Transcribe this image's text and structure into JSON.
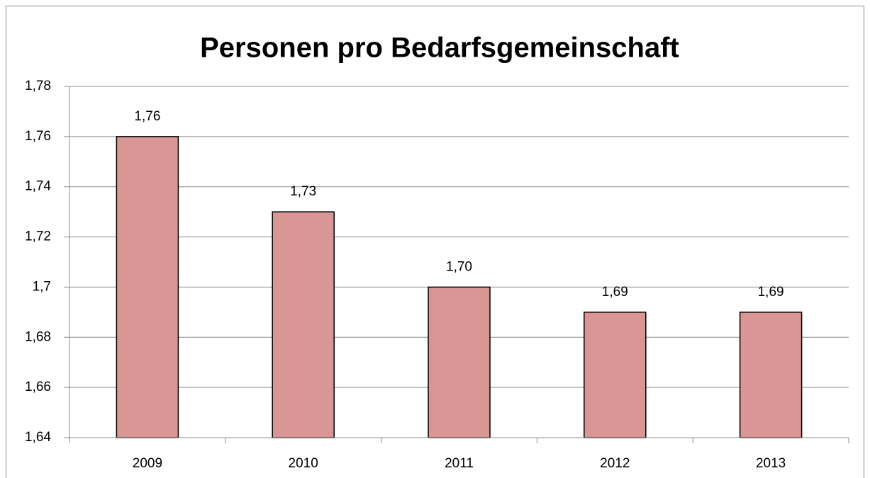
{
  "chart_data": {
    "type": "bar",
    "title": "Personen pro Bedarfsgemeinschaft",
    "categories": [
      "2009",
      "2010",
      "2011",
      "2012",
      "2013"
    ],
    "values": [
      1.76,
      1.73,
      1.7,
      1.69,
      1.69
    ],
    "value_labels": [
      "1,76",
      "1,73",
      "1,70",
      "1,69",
      "1,69"
    ],
    "color": "#d99694",
    "ylim": [
      1.64,
      1.78
    ],
    "yticks": [
      {
        "value": 1.64,
        "label": "1,64"
      },
      {
        "value": 1.66,
        "label": "1,66"
      },
      {
        "value": 1.68,
        "label": "1,68"
      },
      {
        "value": 1.7,
        "label": "1,7"
      },
      {
        "value": 1.72,
        "label": "1,72"
      },
      {
        "value": 1.74,
        "label": "1,74"
      },
      {
        "value": 1.76,
        "label": "1,76"
      },
      {
        "value": 1.78,
        "label": "1,78"
      }
    ],
    "grid": true
  }
}
